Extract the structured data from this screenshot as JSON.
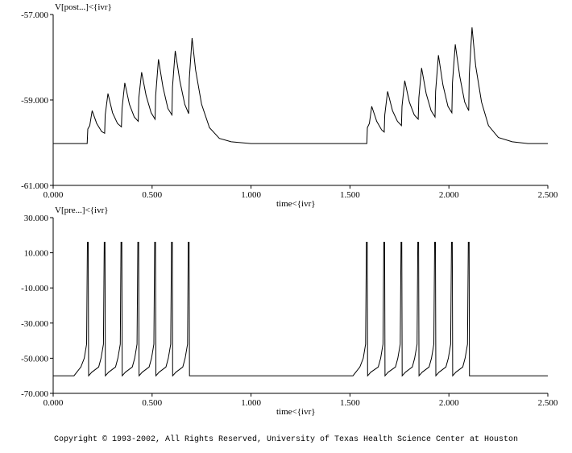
{
  "chart_data": [
    {
      "type": "line",
      "ylabel": "V[post...]<{ivr}",
      "xlabel": "time<{ivr}",
      "xlim": [
        0,
        2.5
      ],
      "ylim": [
        -61,
        -57
      ],
      "xticks": [
        "0.000",
        "0.500",
        "1.000",
        "1.500",
        "2.000",
        "2.500"
      ],
      "yticks": [
        "-57.000",
        "-59.000",
        "-61.000"
      ],
      "ytick_values": [
        -57,
        -59,
        -61
      ],
      "grid": false,
      "series": [
        {
          "x": [
            0.0,
            0.172,
            0.175,
            0.185,
            0.197,
            0.22,
            0.245,
            0.26,
            0.263,
            0.277,
            0.3,
            0.325,
            0.345,
            0.348,
            0.362,
            0.385,
            0.41,
            0.43,
            0.433,
            0.447,
            0.47,
            0.495,
            0.515,
            0.518,
            0.532,
            0.555,
            0.58,
            0.6,
            0.603,
            0.617,
            0.64,
            0.665,
            0.685,
            0.688,
            0.702,
            0.72,
            0.75,
            0.79,
            0.84,
            0.9,
            1.0,
            1.2,
            1.4,
            1.585,
            1.588,
            1.598,
            1.61,
            1.635,
            1.66,
            1.673,
            1.676,
            1.69,
            1.715,
            1.74,
            1.76,
            1.763,
            1.777,
            1.8,
            1.825,
            1.845,
            1.848,
            1.862,
            1.885,
            1.91,
            1.93,
            1.933,
            1.947,
            1.97,
            1.995,
            2.015,
            2.018,
            2.032,
            2.055,
            2.08,
            2.1,
            2.103,
            2.117,
            2.135,
            2.165,
            2.2,
            2.25,
            2.32,
            2.4,
            2.5
          ],
          "y": [
            -60.02,
            -60.02,
            -59.68,
            -59.6,
            -59.25,
            -59.55,
            -59.74,
            -59.78,
            -59.35,
            -58.85,
            -59.3,
            -59.55,
            -59.63,
            -59.2,
            -58.6,
            -59.1,
            -59.4,
            -59.5,
            -58.95,
            -58.35,
            -58.9,
            -59.3,
            -59.45,
            -58.9,
            -58.05,
            -58.7,
            -59.2,
            -59.35,
            -58.7,
            -57.85,
            -58.55,
            -59.1,
            -59.32,
            -58.5,
            -57.55,
            -58.3,
            -59.1,
            -59.65,
            -59.9,
            -59.98,
            -60.02,
            -60.02,
            -60.02,
            -60.02,
            -59.65,
            -59.55,
            -59.15,
            -59.5,
            -59.7,
            -59.75,
            -59.35,
            -58.8,
            -59.25,
            -59.5,
            -59.6,
            -59.15,
            -58.55,
            -59.05,
            -59.35,
            -59.45,
            -58.95,
            -58.25,
            -58.85,
            -59.25,
            -59.4,
            -58.8,
            -57.95,
            -58.65,
            -59.15,
            -59.3,
            -58.6,
            -57.7,
            -58.45,
            -59.05,
            -59.25,
            -58.4,
            -57.3,
            -58.2,
            -59.05,
            -59.6,
            -59.88,
            -59.98,
            -60.02,
            -60.02
          ]
        }
      ]
    },
    {
      "type": "line",
      "ylabel": "V[pre...]<{ivr}",
      "xlabel": "time<{ivr}",
      "xlim": [
        0,
        2.5
      ],
      "ylim": [
        -70,
        30
      ],
      "xticks": [
        "0.000",
        "0.500",
        "1.000",
        "1.500",
        "2.000",
        "2.500"
      ],
      "yticks": [
        "30.000",
        "10.000",
        "-10.000",
        "-30.000",
        "-50.000",
        "-70.000"
      ],
      "ytick_values": [
        30,
        10,
        -10,
        -30,
        -50,
        -70
      ],
      "grid": false,
      "series": [
        {
          "spike_times": [
            0.175,
            0.26,
            0.345,
            0.43,
            0.515,
            0.6,
            0.685,
            1.585,
            1.673,
            1.76,
            1.845,
            1.93,
            2.015,
            2.1
          ],
          "spike_peak": 16,
          "spike_trough": -60,
          "rest": -60
        }
      ]
    }
  ],
  "footer": {
    "copyright": "Copyright © 1993-2002, All Rights Reserved, University of Texas Health Science Center at Houston"
  }
}
